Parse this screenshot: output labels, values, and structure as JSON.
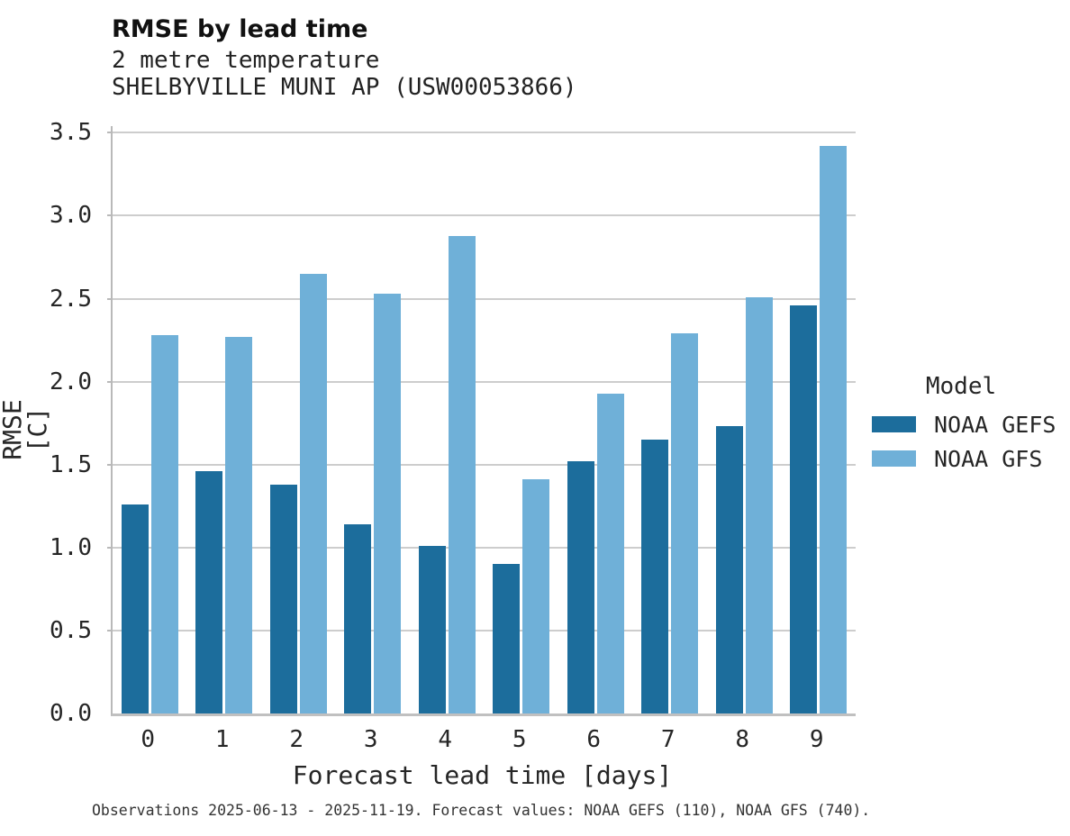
{
  "chart_data": {
    "type": "bar",
    "title": "RMSE by lead time",
    "subtitle_lines": [
      "2 metre temperature",
      "SHELBYVILLE MUNI AP (USW00053866)"
    ],
    "xlabel": "Forecast lead time [days]",
    "ylabel": "RMSE [C]",
    "categories": [
      "0",
      "1",
      "2",
      "3",
      "4",
      "5",
      "6",
      "7",
      "8",
      "9"
    ],
    "series": [
      {
        "name": "NOAA GEFS",
        "color": "#1c6d9c",
        "values": [
          1.26,
          1.46,
          1.38,
          1.14,
          1.01,
          0.9,
          1.52,
          1.65,
          1.73,
          2.46
        ]
      },
      {
        "name": "NOAA GFS",
        "color": "#6fb0d8",
        "values": [
          2.28,
          2.27,
          2.65,
          2.53,
          2.88,
          1.41,
          1.93,
          2.29,
          2.51,
          3.42
        ]
      }
    ],
    "ylim": [
      0,
      3.54
    ],
    "ytick_labels": [
      "0.0",
      "0.5",
      "1.0",
      "1.5",
      "2.0",
      "2.5",
      "3.0",
      "3.5"
    ],
    "grid": "horizontal",
    "legend": {
      "title": "Model",
      "position": "right"
    },
    "caption": "Observations 2025-06-13 - 2025-11-19. Forecast values: NOAA GEFS (110), NOAA GFS (740)."
  },
  "colors": {
    "background": "#ffffff",
    "grid": "#cdcdcd",
    "spine": "#b9b9b9",
    "text": "#262626",
    "caption_text": "#333333"
  }
}
